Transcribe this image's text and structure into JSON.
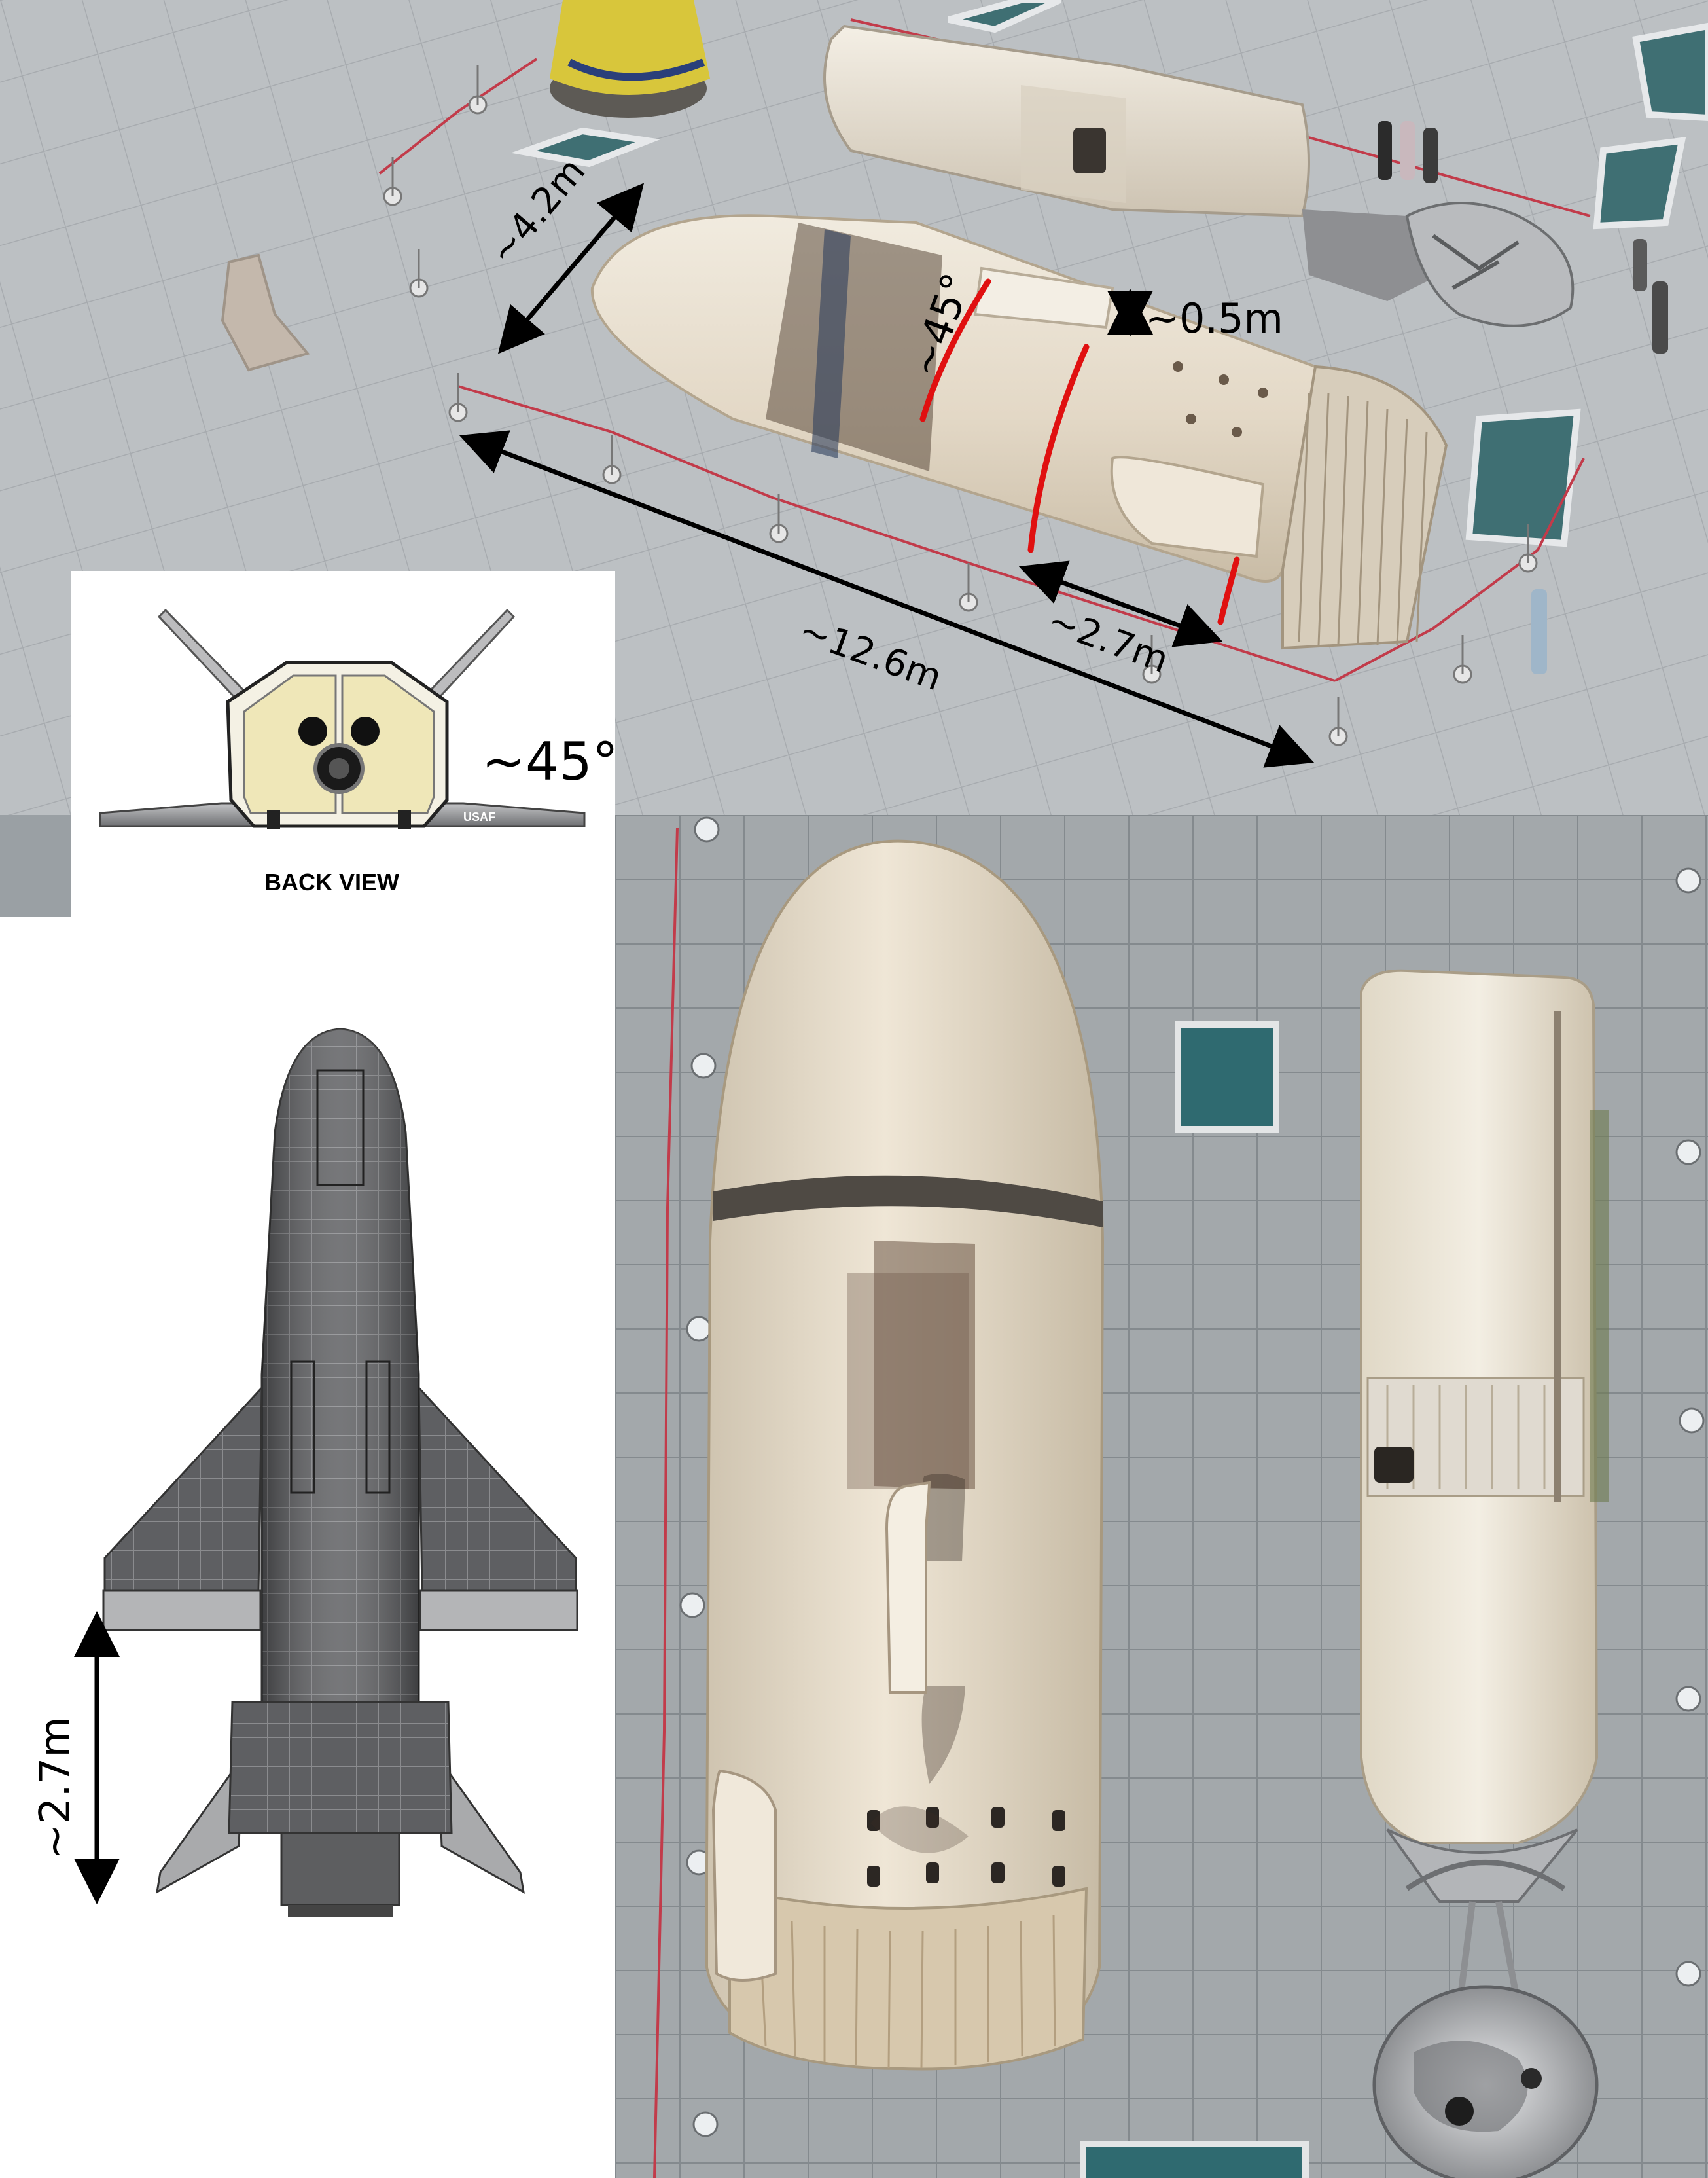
{
  "annotations": {
    "width": "~4.2m",
    "angle_top": "~45°",
    "height": "~0.5m",
    "length": "~12.6m",
    "tail_length": "~2.7m",
    "back_view_angle": "~45°",
    "back_view_label": "BACK VIEW",
    "diagram_length": "~2.7m",
    "wing_marking": "USAF"
  },
  "colors": {
    "measure_red": "#e01010",
    "ground": "#b9bcbf",
    "fairing": "#e6ddcd",
    "char": "#4a3a2e"
  }
}
